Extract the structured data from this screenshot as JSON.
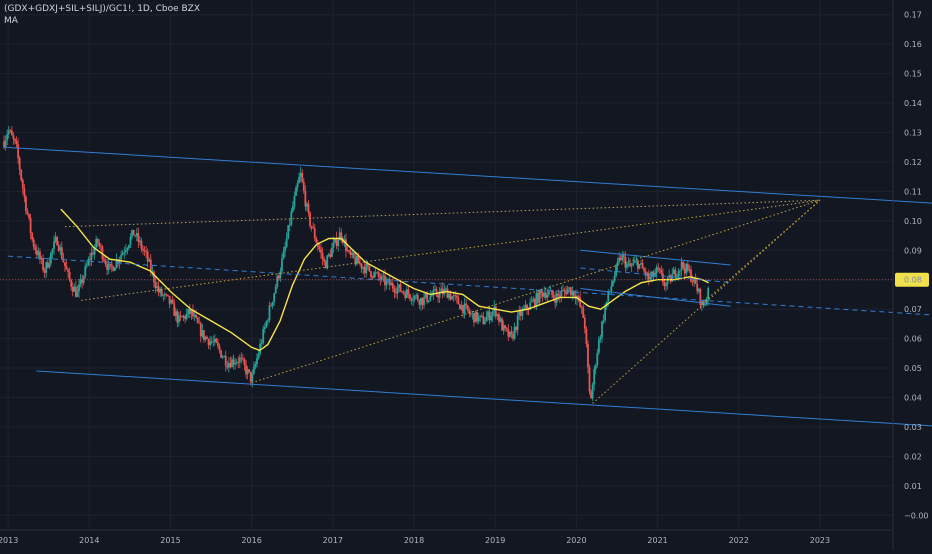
{
  "header": {
    "symbol": "(GDX+GDXJ+SIL+SILJ)/GC1!, 1D, Cboe BZX",
    "indicator": "MA"
  },
  "colors": {
    "background": "#131722",
    "grid": "#1e222d",
    "axis_text": "#b2b5be",
    "candle_up": "#26a69a",
    "candle_down": "#ef5350",
    "ma": "#f5e54a",
    "trendline": "#2f7fd6",
    "fan": "#c2a83a",
    "price_line": "#ef5350",
    "price_badge": "#f0e14a"
  },
  "chart_data": {
    "type": "candlestick",
    "ylim": [
      -0.005,
      0.175
    ],
    "y_ticks": [
      0.17,
      0.16,
      0.15,
      0.14,
      0.13,
      0.12,
      0.11,
      0.1,
      0.09,
      0.08,
      0.07,
      0.06,
      0.05,
      0.04,
      0.03,
      0.02,
      0.01,
      -0.0
    ],
    "y_tick_labels": [
      "0.17",
      "0.16",
      "0.15",
      "0.14",
      "0.13",
      "0.12",
      "0.11",
      "0.10",
      "0.09",
      "0.08",
      "0.07",
      "0.06",
      "0.05",
      "0.04",
      "0.03",
      "0.02",
      "0.01",
      "−0.00"
    ],
    "x_range": [
      2012.9,
      2023.9
    ],
    "x_ticks": [
      2013,
      2014,
      2015,
      2016,
      2017,
      2018,
      2019,
      2020,
      2021,
      2022,
      2023
    ],
    "x_tick_labels": [
      "2013",
      "2014",
      "2015",
      "2016",
      "2017",
      "2018",
      "2019",
      "2020",
      "2021",
      "2022",
      "2023"
    ],
    "last_price": 0.08,
    "last_price_label": "0.08",
    "price_anchors": [
      [
        2012.95,
        0.127
      ],
      [
        2013.0,
        0.131
      ],
      [
        2013.1,
        0.125
      ],
      [
        2013.2,
        0.108
      ],
      [
        2013.3,
        0.093
      ],
      [
        2013.45,
        0.083
      ],
      [
        2013.6,
        0.094
      ],
      [
        2013.75,
        0.08
      ],
      [
        2013.85,
        0.075
      ],
      [
        2014.0,
        0.087
      ],
      [
        2014.1,
        0.093
      ],
      [
        2014.25,
        0.083
      ],
      [
        2014.4,
        0.089
      ],
      [
        2014.55,
        0.096
      ],
      [
        2014.7,
        0.088
      ],
      [
        2014.85,
        0.076
      ],
      [
        2015.0,
        0.072
      ],
      [
        2015.1,
        0.066
      ],
      [
        2015.25,
        0.069
      ],
      [
        2015.4,
        0.061
      ],
      [
        2015.55,
        0.058
      ],
      [
        2015.7,
        0.052
      ],
      [
        2015.85,
        0.053
      ],
      [
        2016.0,
        0.046
      ],
      [
        2016.1,
        0.057
      ],
      [
        2016.25,
        0.073
      ],
      [
        2016.4,
        0.089
      ],
      [
        2016.5,
        0.104
      ],
      [
        2016.6,
        0.116
      ],
      [
        2016.7,
        0.101
      ],
      [
        2016.8,
        0.093
      ],
      [
        2016.9,
        0.085
      ],
      [
        2017.0,
        0.091
      ],
      [
        2017.1,
        0.096
      ],
      [
        2017.2,
        0.088
      ],
      [
        2017.35,
        0.085
      ],
      [
        2017.5,
        0.082
      ],
      [
        2017.65,
        0.079
      ],
      [
        2017.8,
        0.077
      ],
      [
        2017.95,
        0.075
      ],
      [
        2018.1,
        0.073
      ],
      [
        2018.25,
        0.075
      ],
      [
        2018.4,
        0.076
      ],
      [
        2018.55,
        0.072
      ],
      [
        2018.7,
        0.068
      ],
      [
        2018.85,
        0.066
      ],
      [
        2019.0,
        0.07
      ],
      [
        2019.1,
        0.063
      ],
      [
        2019.2,
        0.06
      ],
      [
        2019.3,
        0.068
      ],
      [
        2019.45,
        0.072
      ],
      [
        2019.6,
        0.076
      ],
      [
        2019.75,
        0.074
      ],
      [
        2019.9,
        0.077
      ],
      [
        2020.0,
        0.075
      ],
      [
        2020.1,
        0.066
      ],
      [
        2020.17,
        0.038
      ],
      [
        2020.25,
        0.055
      ],
      [
        2020.35,
        0.07
      ],
      [
        2020.45,
        0.08
      ],
      [
        2020.55,
        0.088
      ],
      [
        2020.65,
        0.084
      ],
      [
        2020.75,
        0.086
      ],
      [
        2020.9,
        0.08
      ],
      [
        2021.0,
        0.083
      ],
      [
        2021.1,
        0.078
      ],
      [
        2021.2,
        0.082
      ],
      [
        2021.3,
        0.085
      ],
      [
        2021.4,
        0.082
      ],
      [
        2021.5,
        0.076
      ],
      [
        2021.55,
        0.071
      ],
      [
        2021.6,
        0.073
      ],
      [
        2021.63,
        0.08
      ]
    ],
    "ma_points": [
      [
        2013.65,
        0.104
      ],
      [
        2013.85,
        0.098
      ],
      [
        2014.05,
        0.091
      ],
      [
        2014.25,
        0.087
      ],
      [
        2014.5,
        0.086
      ],
      [
        2014.75,
        0.083
      ],
      [
        2015.0,
        0.076
      ],
      [
        2015.25,
        0.07
      ],
      [
        2015.5,
        0.066
      ],
      [
        2015.75,
        0.062
      ],
      [
        2016.0,
        0.057
      ],
      [
        2016.1,
        0.056
      ],
      [
        2016.2,
        0.058
      ],
      [
        2016.35,
        0.066
      ],
      [
        2016.5,
        0.078
      ],
      [
        2016.65,
        0.087
      ],
      [
        2016.8,
        0.092
      ],
      [
        2016.95,
        0.094
      ],
      [
        2017.1,
        0.094
      ],
      [
        2017.25,
        0.09
      ],
      [
        2017.4,
        0.086
      ],
      [
        2017.6,
        0.083
      ],
      [
        2017.8,
        0.08
      ],
      [
        2018.0,
        0.077
      ],
      [
        2018.2,
        0.075
      ],
      [
        2018.4,
        0.076
      ],
      [
        2018.6,
        0.075
      ],
      [
        2018.8,
        0.071
      ],
      [
        2019.0,
        0.07
      ],
      [
        2019.2,
        0.069
      ],
      [
        2019.4,
        0.07
      ],
      [
        2019.6,
        0.072
      ],
      [
        2019.8,
        0.074
      ],
      [
        2020.0,
        0.074
      ],
      [
        2020.15,
        0.071
      ],
      [
        2020.3,
        0.07
      ],
      [
        2020.45,
        0.073
      ],
      [
        2020.6,
        0.076
      ],
      [
        2020.8,
        0.079
      ],
      [
        2021.0,
        0.08
      ],
      [
        2021.2,
        0.08
      ],
      [
        2021.4,
        0.081
      ],
      [
        2021.55,
        0.08
      ],
      [
        2021.63,
        0.079
      ]
    ],
    "trendlines": [
      {
        "style": "solid",
        "color": "#2f7fd6",
        "from": [
          2012.95,
          0.125
        ],
        "to": [
          2024.4,
          0.106
        ]
      },
      {
        "style": "solid",
        "color": "#2f7fd6",
        "from": [
          2013.35,
          0.049
        ],
        "to": [
          2024.6,
          0.03
        ]
      },
      {
        "style": "dashed",
        "color": "#2f7fd6",
        "from": [
          2013.0,
          0.088
        ],
        "to": [
          2024.4,
          0.068
        ]
      },
      {
        "style": "solid",
        "color": "#2f7fd6",
        "from": [
          2020.05,
          0.09
        ],
        "to": [
          2021.9,
          0.085
        ]
      },
      {
        "style": "dashed",
        "color": "#2f7fd6",
        "from": [
          2020.05,
          0.084
        ],
        "to": [
          2021.9,
          0.079
        ]
      },
      {
        "style": "solid",
        "color": "#2f7fd6",
        "from": [
          2020.05,
          0.077
        ],
        "to": [
          2021.9,
          0.071
        ]
      },
      {
        "style": "dotted",
        "color": "#c2a83a",
        "from": [
          2013.9,
          0.073
        ],
        "to": [
          2023.0,
          0.107
        ]
      },
      {
        "style": "dotted",
        "color": "#c2a83a",
        "from": [
          2013.7,
          0.098
        ],
        "to": [
          2023.0,
          0.107
        ]
      },
      {
        "style": "dotted",
        "color": "#c2a83a",
        "from": [
          2016.0,
          0.045
        ],
        "to": [
          2023.0,
          0.107
        ]
      },
      {
        "style": "dotted",
        "color": "#c2a83a",
        "from": [
          2020.2,
          0.038
        ],
        "to": [
          2023.0,
          0.107
        ]
      },
      {
        "style": "dotted",
        "color": "#c2a83a",
        "from": [
          2021.55,
          0.072
        ],
        "to": [
          2023.0,
          0.107
        ]
      }
    ]
  }
}
